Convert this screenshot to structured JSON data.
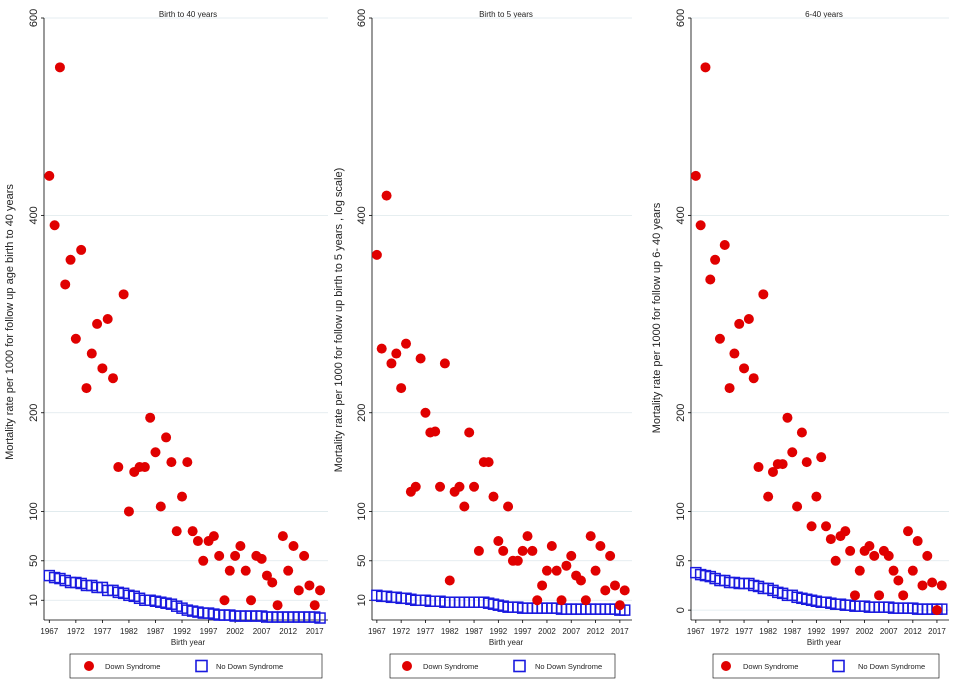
{
  "colors": {
    "down": "#e00000",
    "nods": "#1a1adf",
    "grid": "#dde8ec",
    "axis": "#000000"
  },
  "chart_data": [
    {
      "type": "scatter",
      "title": "Birth to  40 years",
      "ylabel": "Mortality rate per 1000 for follow up age birth to 40 years",
      "xlabel": "Birth year",
      "ylim": [
        -10,
        600
      ],
      "xlim": [
        1966,
        2019.5
      ],
      "yticks": [
        10,
        50,
        100,
        200,
        400,
        600
      ],
      "xticks": [
        1967,
        1972,
        1977,
        1982,
        1987,
        1992,
        1997,
        2002,
        2007,
        2012,
        2017
      ],
      "legend": [
        "Down Syndrome",
        "No Down Syndrome"
      ],
      "series": [
        {
          "name": "Down Syndrome",
          "marker": "filled-circle",
          "x": [
            1967,
            1968,
            1969,
            1970,
            1971,
            1972,
            1973,
            1974,
            1975,
            1976,
            1977,
            1978,
            1979,
            1980,
            1981,
            1982,
            1983,
            1984,
            1985,
            1986,
            1987,
            1988,
            1989,
            1990,
            1991,
            1992,
            1993,
            1994,
            1995,
            1996,
            1997,
            1998,
            1999,
            2000,
            2001,
            2002,
            2003,
            2004,
            2005,
            2006,
            2007,
            2008,
            2009,
            2010,
            2011,
            2012,
            2013,
            2014,
            2015,
            2016,
            2017,
            2018
          ],
          "y": [
            440,
            390,
            550,
            330,
            355,
            275,
            365,
            225,
            260,
            290,
            245,
            295,
            235,
            145,
            320,
            100,
            140,
            145,
            145,
            195,
            160,
            105,
            175,
            150,
            80,
            115,
            150,
            80,
            70,
            50,
            70,
            75,
            55,
            10,
            40,
            55,
            65,
            40,
            10,
            55,
            52,
            35,
            28,
            5,
            75,
            40,
            65,
            20,
            55,
            25,
            5,
            20
          ]
        },
        {
          "name": "No Down Syndrome",
          "marker": "hollow-square",
          "x": [
            1967,
            1968,
            1969,
            1970,
            1971,
            1972,
            1973,
            1974,
            1975,
            1976,
            1977,
            1978,
            1979,
            1980,
            1981,
            1982,
            1983,
            1984,
            1985,
            1986,
            1987,
            1988,
            1989,
            1990,
            1991,
            1992,
            1993,
            1994,
            1995,
            1996,
            1997,
            1998,
            1999,
            2000,
            2001,
            2002,
            2003,
            2004,
            2005,
            2006,
            2007,
            2008,
            2009,
            2010,
            2011,
            2012,
            2013,
            2014,
            2015,
            2016,
            2017,
            2018
          ],
          "y": [
            35,
            33,
            32,
            30,
            28,
            28,
            27,
            25,
            25,
            23,
            23,
            20,
            20,
            18,
            17,
            15,
            14,
            12,
            10,
            10,
            9,
            8,
            7,
            6,
            4,
            2,
            0,
            -1,
            -2,
            -3,
            -3,
            -4,
            -5,
            -5,
            -5,
            -6,
            -6,
            -6,
            -6,
            -6,
            -6,
            -7,
            -7,
            -7,
            -7,
            -7,
            -7,
            -7,
            -7,
            -7,
            -7,
            -8
          ]
        }
      ]
    },
    {
      "type": "scatter",
      "title": "Birth to 5 years",
      "ylabel": "Mortality rate per 1000 for follow up birth to 5 years , log scale)",
      "xlabel": "Birth year",
      "ylim": [
        -10,
        600
      ],
      "xlim": [
        1966,
        2019.5
      ],
      "yticks": [
        10,
        50,
        100,
        200,
        400,
        600
      ],
      "xticks": [
        1967,
        1972,
        1977,
        1982,
        1987,
        1992,
        1997,
        2002,
        2007,
        2012,
        2017
      ],
      "legend": [
        "Down Syndrome",
        "No Down Syndrome"
      ],
      "series": [
        {
          "name": "Down Syndrome",
          "marker": "filled-circle",
          "x": [
            1967,
            1968,
            1969,
            1970,
            1971,
            1972,
            1973,
            1974,
            1975,
            1976,
            1977,
            1978,
            1979,
            1980,
            1981,
            1982,
            1983,
            1984,
            1985,
            1986,
            1987,
            1988,
            1989,
            1990,
            1991,
            1992,
            1993,
            1994,
            1995,
            1996,
            1997,
            1998,
            1999,
            2000,
            2001,
            2002,
            2003,
            2004,
            2005,
            2006,
            2007,
            2008,
            2009,
            2010,
            2011,
            2012,
            2013,
            2014,
            2015,
            2016,
            2017,
            2018
          ],
          "y": [
            360,
            265,
            420,
            250,
            260,
            225,
            270,
            120,
            125,
            255,
            200,
            180,
            181,
            125,
            250,
            30,
            120,
            125,
            105,
            180,
            125,
            60,
            150,
            150,
            115,
            70,
            60,
            105,
            50,
            50,
            60,
            75,
            60,
            10,
            25,
            40,
            65,
            40,
            10,
            45,
            55,
            35,
            30,
            10,
            75,
            40,
            65,
            20,
            55,
            25,
            5,
            20
          ]
        },
        {
          "name": "No Down Syndrome",
          "marker": "hollow-square",
          "x": [
            1967,
            1968,
            1969,
            1970,
            1971,
            1972,
            1973,
            1974,
            1975,
            1976,
            1977,
            1978,
            1979,
            1980,
            1981,
            1982,
            1983,
            1984,
            1985,
            1986,
            1987,
            1988,
            1989,
            1990,
            1991,
            1992,
            1993,
            1994,
            1995,
            1996,
            1997,
            1998,
            1999,
            2000,
            2001,
            2002,
            2003,
            2004,
            2005,
            2006,
            2007,
            2008,
            2009,
            2010,
            2011,
            2012,
            2013,
            2014,
            2015,
            2016,
            2017,
            2018
          ],
          "y": [
            15,
            14,
            14,
            13,
            13,
            12,
            12,
            11,
            10,
            10,
            10,
            9,
            9,
            9,
            8,
            8,
            8,
            8,
            8,
            8,
            8,
            8,
            8,
            7,
            6,
            5,
            4,
            3,
            3,
            3,
            2,
            2,
            2,
            2,
            2,
            2,
            2,
            2,
            1,
            1,
            1,
            1,
            1,
            1,
            1,
            1,
            1,
            1,
            1,
            1,
            0,
            0
          ]
        }
      ]
    },
    {
      "type": "scatter",
      "title": "6-40 years",
      "ylabel": "Mortality rate per 1000 for follow up 6- 40 years",
      "xlabel": "Birth year",
      "ylim": [
        -10,
        600
      ],
      "xlim": [
        1966,
        2019.5
      ],
      "yticks": [
        0,
        50,
        100,
        200,
        400,
        600
      ],
      "xticks": [
        1967,
        1972,
        1977,
        1982,
        1987,
        1992,
        1997,
        2002,
        2007,
        2012,
        2017
      ],
      "legend": [
        "Down Syndrome",
        "No Down Syndrome"
      ],
      "series": [
        {
          "name": "Down Syndrome",
          "marker": "filled-circle",
          "x": [
            1967,
            1968,
            1969,
            1970,
            1971,
            1972,
            1973,
            1974,
            1975,
            1976,
            1977,
            1978,
            1979,
            1980,
            1981,
            1982,
            1983,
            1984,
            1985,
            1986,
            1987,
            1988,
            1989,
            1990,
            1991,
            1992,
            1993,
            1994,
            1995,
            1996,
            1997,
            1998,
            1999,
            2000,
            2001,
            2002,
            2003,
            2004,
            2005,
            2006,
            2007,
            2008,
            2009,
            2010,
            2011,
            2012,
            2013,
            2014,
            2015,
            2016,
            2017,
            2018
          ],
          "y": [
            440,
            390,
            550,
            335,
            355,
            275,
            370,
            225,
            260,
            290,
            245,
            295,
            235,
            145,
            320,
            115,
            140,
            148,
            148,
            195,
            160,
            105,
            180,
            150,
            85,
            115,
            155,
            85,
            72,
            50,
            75,
            80,
            60,
            15,
            40,
            60,
            65,
            55,
            15,
            60,
            55,
            40,
            30,
            15,
            80,
            40,
            70,
            25,
            55,
            28,
            0,
            25
          ]
        },
        {
          "name": "No Down Syndrome",
          "marker": "hollow-square",
          "x": [
            1967,
            1968,
            1969,
            1970,
            1971,
            1972,
            1973,
            1974,
            1975,
            1976,
            1977,
            1978,
            1979,
            1980,
            1981,
            1982,
            1983,
            1984,
            1985,
            1986,
            1987,
            1988,
            1989,
            1990,
            1991,
            1992,
            1993,
            1994,
            1995,
            1996,
            1997,
            1998,
            1999,
            2000,
            2001,
            2002,
            2003,
            2004,
            2005,
            2006,
            2007,
            2008,
            2009,
            2010,
            2011,
            2012,
            2013,
            2014,
            2015,
            2016,
            2017,
            2018
          ],
          "y": [
            38,
            36,
            35,
            34,
            32,
            30,
            30,
            28,
            28,
            27,
            27,
            27,
            25,
            24,
            22,
            22,
            20,
            18,
            17,
            15,
            15,
            13,
            12,
            11,
            10,
            9,
            8,
            8,
            7,
            6,
            6,
            5,
            5,
            4,
            4,
            4,
            3,
            3,
            3,
            3,
            3,
            2,
            2,
            2,
            2,
            2,
            1,
            1,
            1,
            1,
            1,
            1
          ]
        }
      ]
    }
  ]
}
